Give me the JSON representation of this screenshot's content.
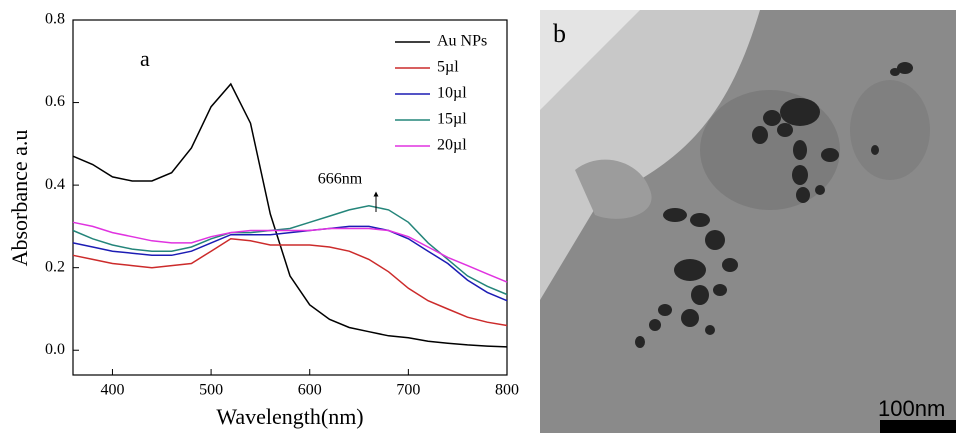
{
  "chart_data": {
    "type": "line",
    "panel_label": "a",
    "x_label": "Wavelength(nm)",
    "y_label": "Absorbance a.u",
    "annotation": "666nm",
    "x": [
      360,
      380,
      400,
      420,
      440,
      460,
      480,
      500,
      520,
      540,
      560,
      580,
      600,
      620,
      640,
      660,
      680,
      700,
      720,
      740,
      760,
      780,
      800
    ],
    "series": [
      {
        "name": "Au NPs",
        "color": "#000000",
        "values": [
          0.47,
          0.45,
          0.42,
          0.41,
          0.41,
          0.43,
          0.49,
          0.59,
          0.645,
          0.55,
          0.33,
          0.18,
          0.11,
          0.075,
          0.055,
          0.045,
          0.035,
          0.03,
          0.022,
          0.017,
          0.013,
          0.01,
          0.008
        ]
      },
      {
        "name": "5µl",
        "color": "#cc2b2b",
        "values": [
          0.23,
          0.22,
          0.21,
          0.205,
          0.2,
          0.205,
          0.21,
          0.24,
          0.27,
          0.265,
          0.255,
          0.255,
          0.255,
          0.25,
          0.24,
          0.22,
          0.19,
          0.15,
          0.12,
          0.1,
          0.08,
          0.068,
          0.06
        ]
      },
      {
        "name": "10µl",
        "color": "#1c1cb4",
        "values": [
          0.26,
          0.25,
          0.24,
          0.235,
          0.23,
          0.23,
          0.24,
          0.26,
          0.28,
          0.28,
          0.28,
          0.285,
          0.29,
          0.295,
          0.3,
          0.3,
          0.29,
          0.27,
          0.24,
          0.21,
          0.17,
          0.14,
          0.12
        ]
      },
      {
        "name": "15µl",
        "color": "#24857a",
        "values": [
          0.29,
          0.27,
          0.255,
          0.245,
          0.24,
          0.24,
          0.25,
          0.27,
          0.285,
          0.285,
          0.29,
          0.295,
          0.31,
          0.325,
          0.34,
          0.35,
          0.34,
          0.31,
          0.26,
          0.22,
          0.18,
          0.155,
          0.135
        ]
      },
      {
        "name": "20µl",
        "color": "#e033e0",
        "values": [
          0.31,
          0.3,
          0.285,
          0.275,
          0.265,
          0.26,
          0.26,
          0.275,
          0.285,
          0.29,
          0.29,
          0.29,
          0.29,
          0.295,
          0.295,
          0.295,
          0.29,
          0.275,
          0.25,
          0.225,
          0.205,
          0.185,
          0.165
        ]
      }
    ],
    "xlim": [
      360,
      800
    ],
    "xticks": [
      400,
      500,
      600,
      700,
      800
    ],
    "ylim": [
      -0.06,
      0.8
    ],
    "yticks": [
      {
        "value": 0,
        "label": "0.0"
      },
      0.2,
      0.4,
      0.6,
      0.8
    ],
    "legend": "upper right"
  },
  "image_panel": {
    "label": "b",
    "scale_bar": "100nm"
  }
}
